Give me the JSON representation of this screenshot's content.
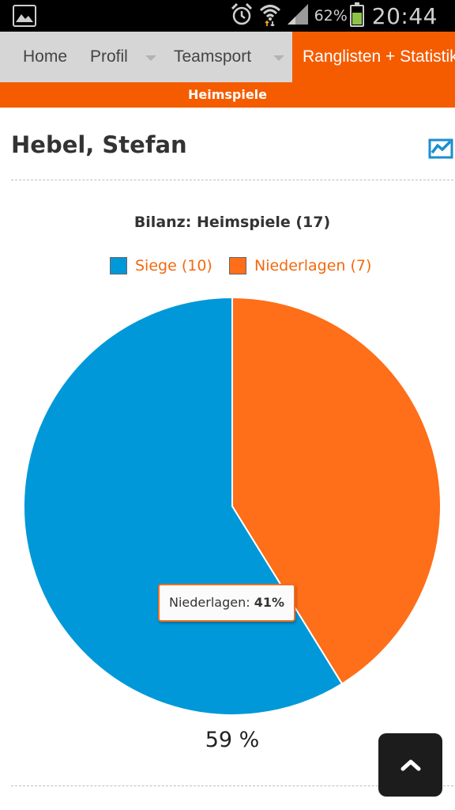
{
  "statusbar": {
    "battery_percent": "62%",
    "time": "20:44",
    "icons": [
      "gallery-icon",
      "alarm-icon",
      "wifi-icon",
      "signal-icon",
      "battery-icon"
    ]
  },
  "nav": {
    "items": [
      "Home",
      "Profil",
      "Teamsport",
      "Ranglisten + Statistiken"
    ],
    "active_index": 3,
    "sub_active": "Heimspiele"
  },
  "page": {
    "player_name": "Hebel, Stefan"
  },
  "chart_data": {
    "type": "pie",
    "title": "Bilanz: Heimspiele (17)",
    "legend_position": "top",
    "series": [
      {
        "name": "Siege (10)",
        "tooltip_name": "Siege",
        "value": 10,
        "percent": 59,
        "color": "#0098d8"
      },
      {
        "name": "Niederlagen (7)",
        "tooltip_name": "Niederlagen",
        "value": 7,
        "percent": 41,
        "color": "#ff6e19"
      }
    ],
    "tooltip": {
      "label": "Niederlagen:",
      "value": "41%"
    },
    "slice_label": "59 %"
  },
  "colors": {
    "accent": "#f55c00",
    "nav_bg": "#d6d6d6"
  }
}
